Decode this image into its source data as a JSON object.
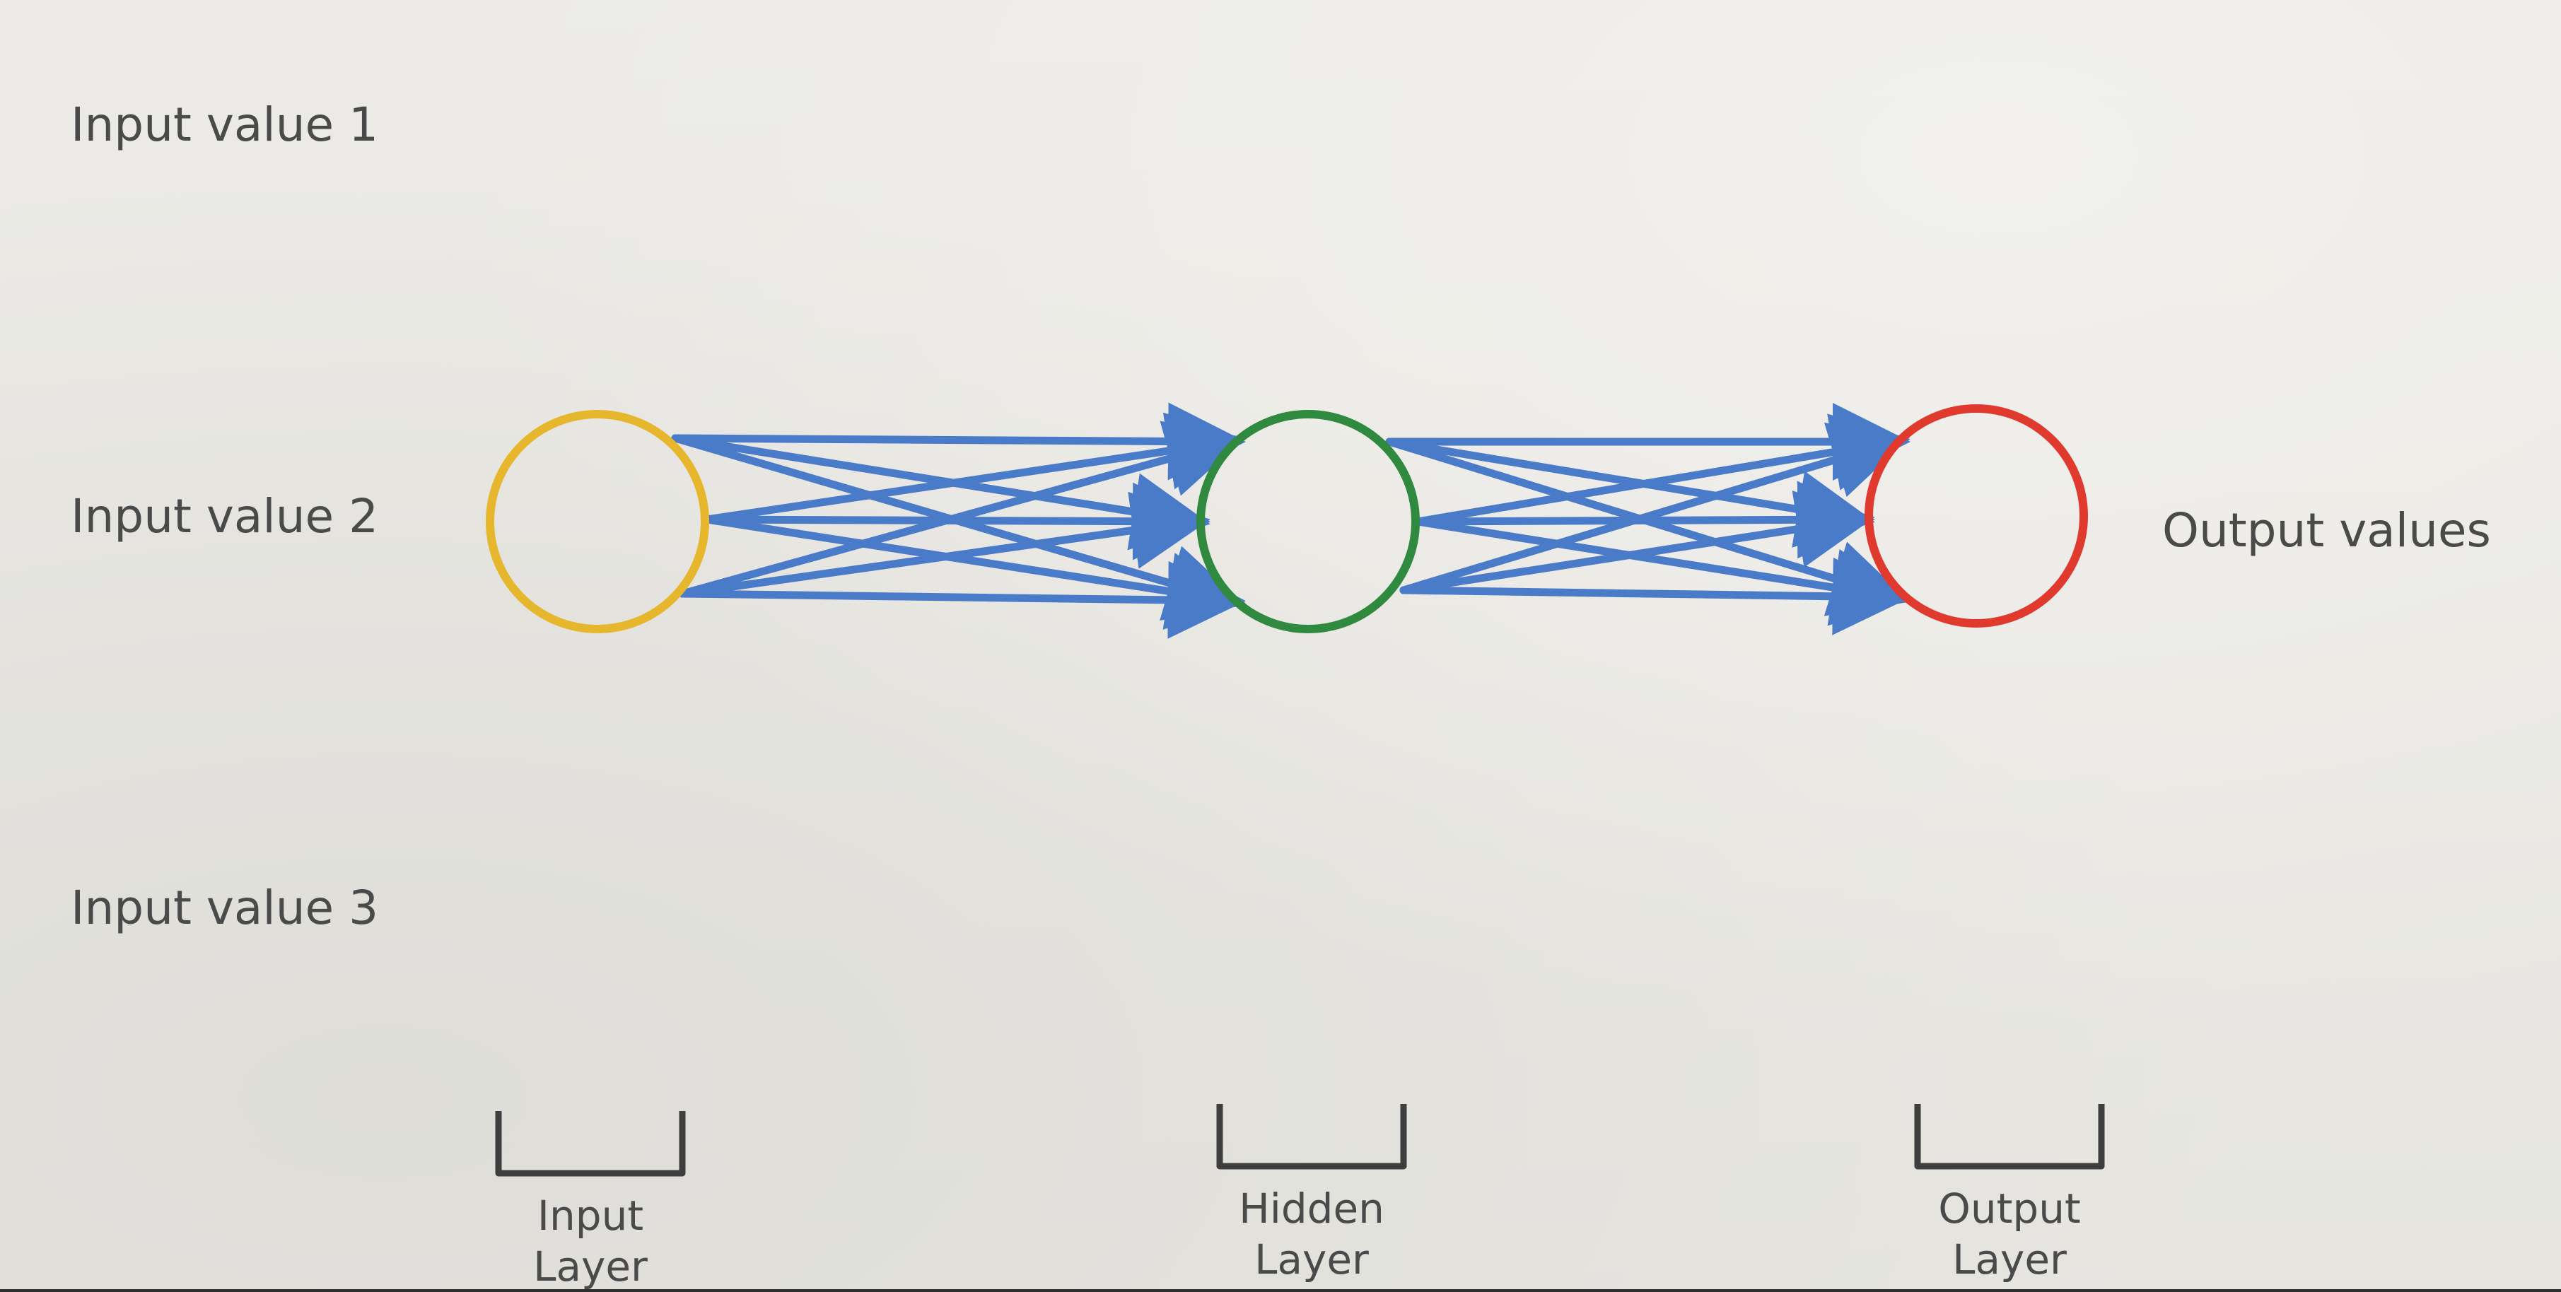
{
  "inputs": {
    "value_1": "Input value 1",
    "value_2": "Input value 2",
    "value_3": "Input value 3"
  },
  "output": {
    "label": "Output values"
  },
  "layers": {
    "input": {
      "line1": "Input",
      "line2": "Layer"
    },
    "hidden": {
      "line1": "Hidden",
      "line2": "Layer"
    },
    "output": {
      "line1": "Output",
      "line2": "Layer"
    }
  },
  "colors": {
    "input_node": "#e6b72c",
    "hidden_node": "#2f8a3f",
    "output_node": "#e03a2f",
    "arrow": "#4a7bc8",
    "text": "#4a4a4a"
  }
}
